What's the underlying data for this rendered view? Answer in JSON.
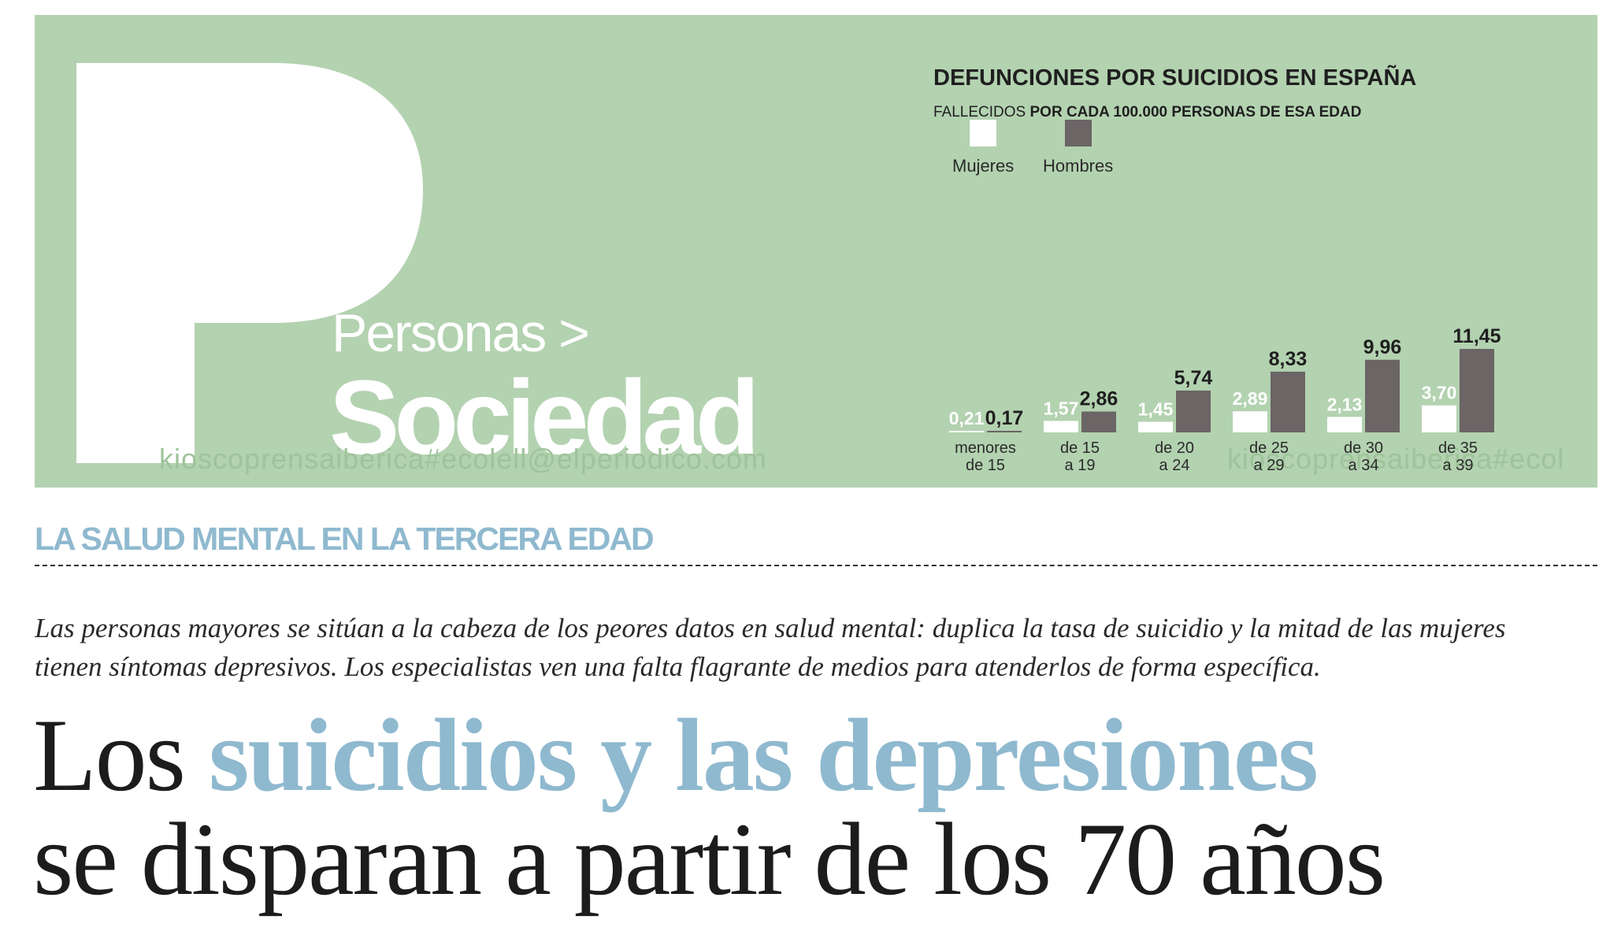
{
  "banner": {
    "background_color": "#b3d2b0",
    "section_kicker": "Personas >",
    "section_name": "Sociedad",
    "watermark": "kioscoprensaiberica#ecolell@elperiodico.com",
    "watermark_right": "kioscoprensaiberica#ecol"
  },
  "chart_data": {
    "type": "bar",
    "title": "DEFUNCIONES POR SUICIDIOS EN ESPAÑA",
    "subtitle_prefix": "FALLECIDOS",
    "subtitle_bold": "POR CADA 100.000 PERSONAS DE ESA EDAD",
    "categories": [
      [
        "menores",
        "de 15"
      ],
      [
        "de 15",
        "a 19"
      ],
      [
        "de 20",
        "a 24"
      ],
      [
        "de 25",
        "a 29"
      ],
      [
        "de 30",
        "a 34"
      ],
      [
        "de 35",
        "a 39"
      ]
    ],
    "series": [
      {
        "name": "Mujeres",
        "color": "#ffffff",
        "label_color": "#ffffff",
        "values": [
          0.21,
          1.57,
          1.45,
          2.89,
          2.13,
          3.7
        ],
        "labels": [
          "0,21",
          "1,57",
          "1,45",
          "2,89",
          "2,13",
          "3,70"
        ]
      },
      {
        "name": "Hombres",
        "color": "#6b6566",
        "label_color": "#1f1f1f",
        "values": [
          0.17,
          2.86,
          5.74,
          8.33,
          9.96,
          11.45
        ],
        "labels": [
          "0,17",
          "2,86",
          "5,74",
          "8,33",
          "9,96",
          "11,45"
        ]
      }
    ],
    "ylim": [
      0,
      11.45
    ],
    "legend_position": "top-left"
  },
  "kicker": "LA SALUD MENTAL EN LA TERCERA EDAD",
  "standfirst": "Las personas mayores se sitúan a la cabeza de los peores datos en salud mental: duplica la tasa de suicidio y la mitad de las mujeres tienen síntomas depresivos. Los especialistas ven una falta flagrante de medios para atenderlos de forma específica.",
  "headline": {
    "part1": "Los ",
    "accent": "suicidios y las depresiones",
    "part2": "se disparan a partir de los 70 años"
  },
  "colors": {
    "accent_blue": "#8fb9cf"
  }
}
